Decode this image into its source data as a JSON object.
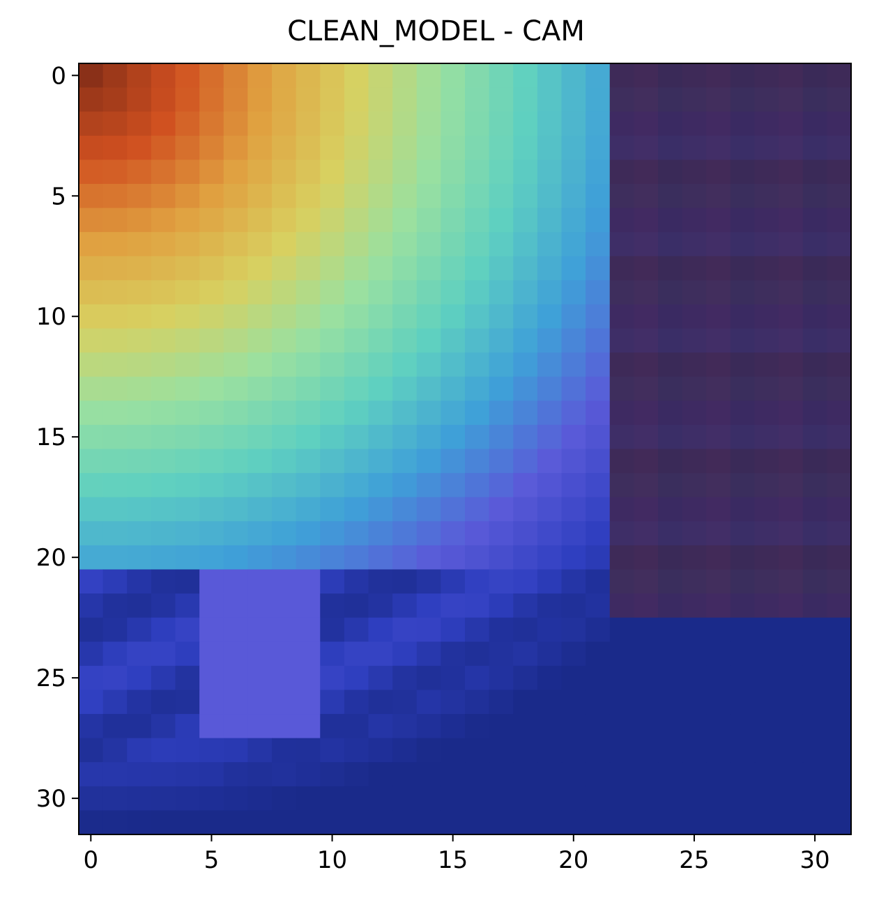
{
  "chart_data": {
    "type": "heatmap",
    "title": "CLEAN_MODEL - CAM",
    "xlabel": "",
    "ylabel": "",
    "shape": [
      32,
      32
    ],
    "xlim": [
      -0.5,
      31.5
    ],
    "ylim": [
      31.5,
      -0.5
    ],
    "x_ticks": [
      0,
      5,
      10,
      15,
      20,
      25,
      30
    ],
    "y_ticks": [
      0,
      5,
      10,
      15,
      20,
      25,
      30
    ],
    "x_tick_labels": [
      "0",
      "5",
      "10",
      "15",
      "20",
      "25",
      "30"
    ],
    "y_tick_labels": [
      "0",
      "5",
      "10",
      "15",
      "20",
      "25",
      "30"
    ],
    "grid": false,
    "colormap": "jet (overlaid on image)",
    "colormap_stops": [
      "#1a2a8a",
      "#2f3fc0",
      "#5a5ad8",
      "#3fa0d8",
      "#5fd0c0",
      "#9ae0a0",
      "#d8d060",
      "#e0a040",
      "#d05020",
      "#8a3018"
    ]
  }
}
